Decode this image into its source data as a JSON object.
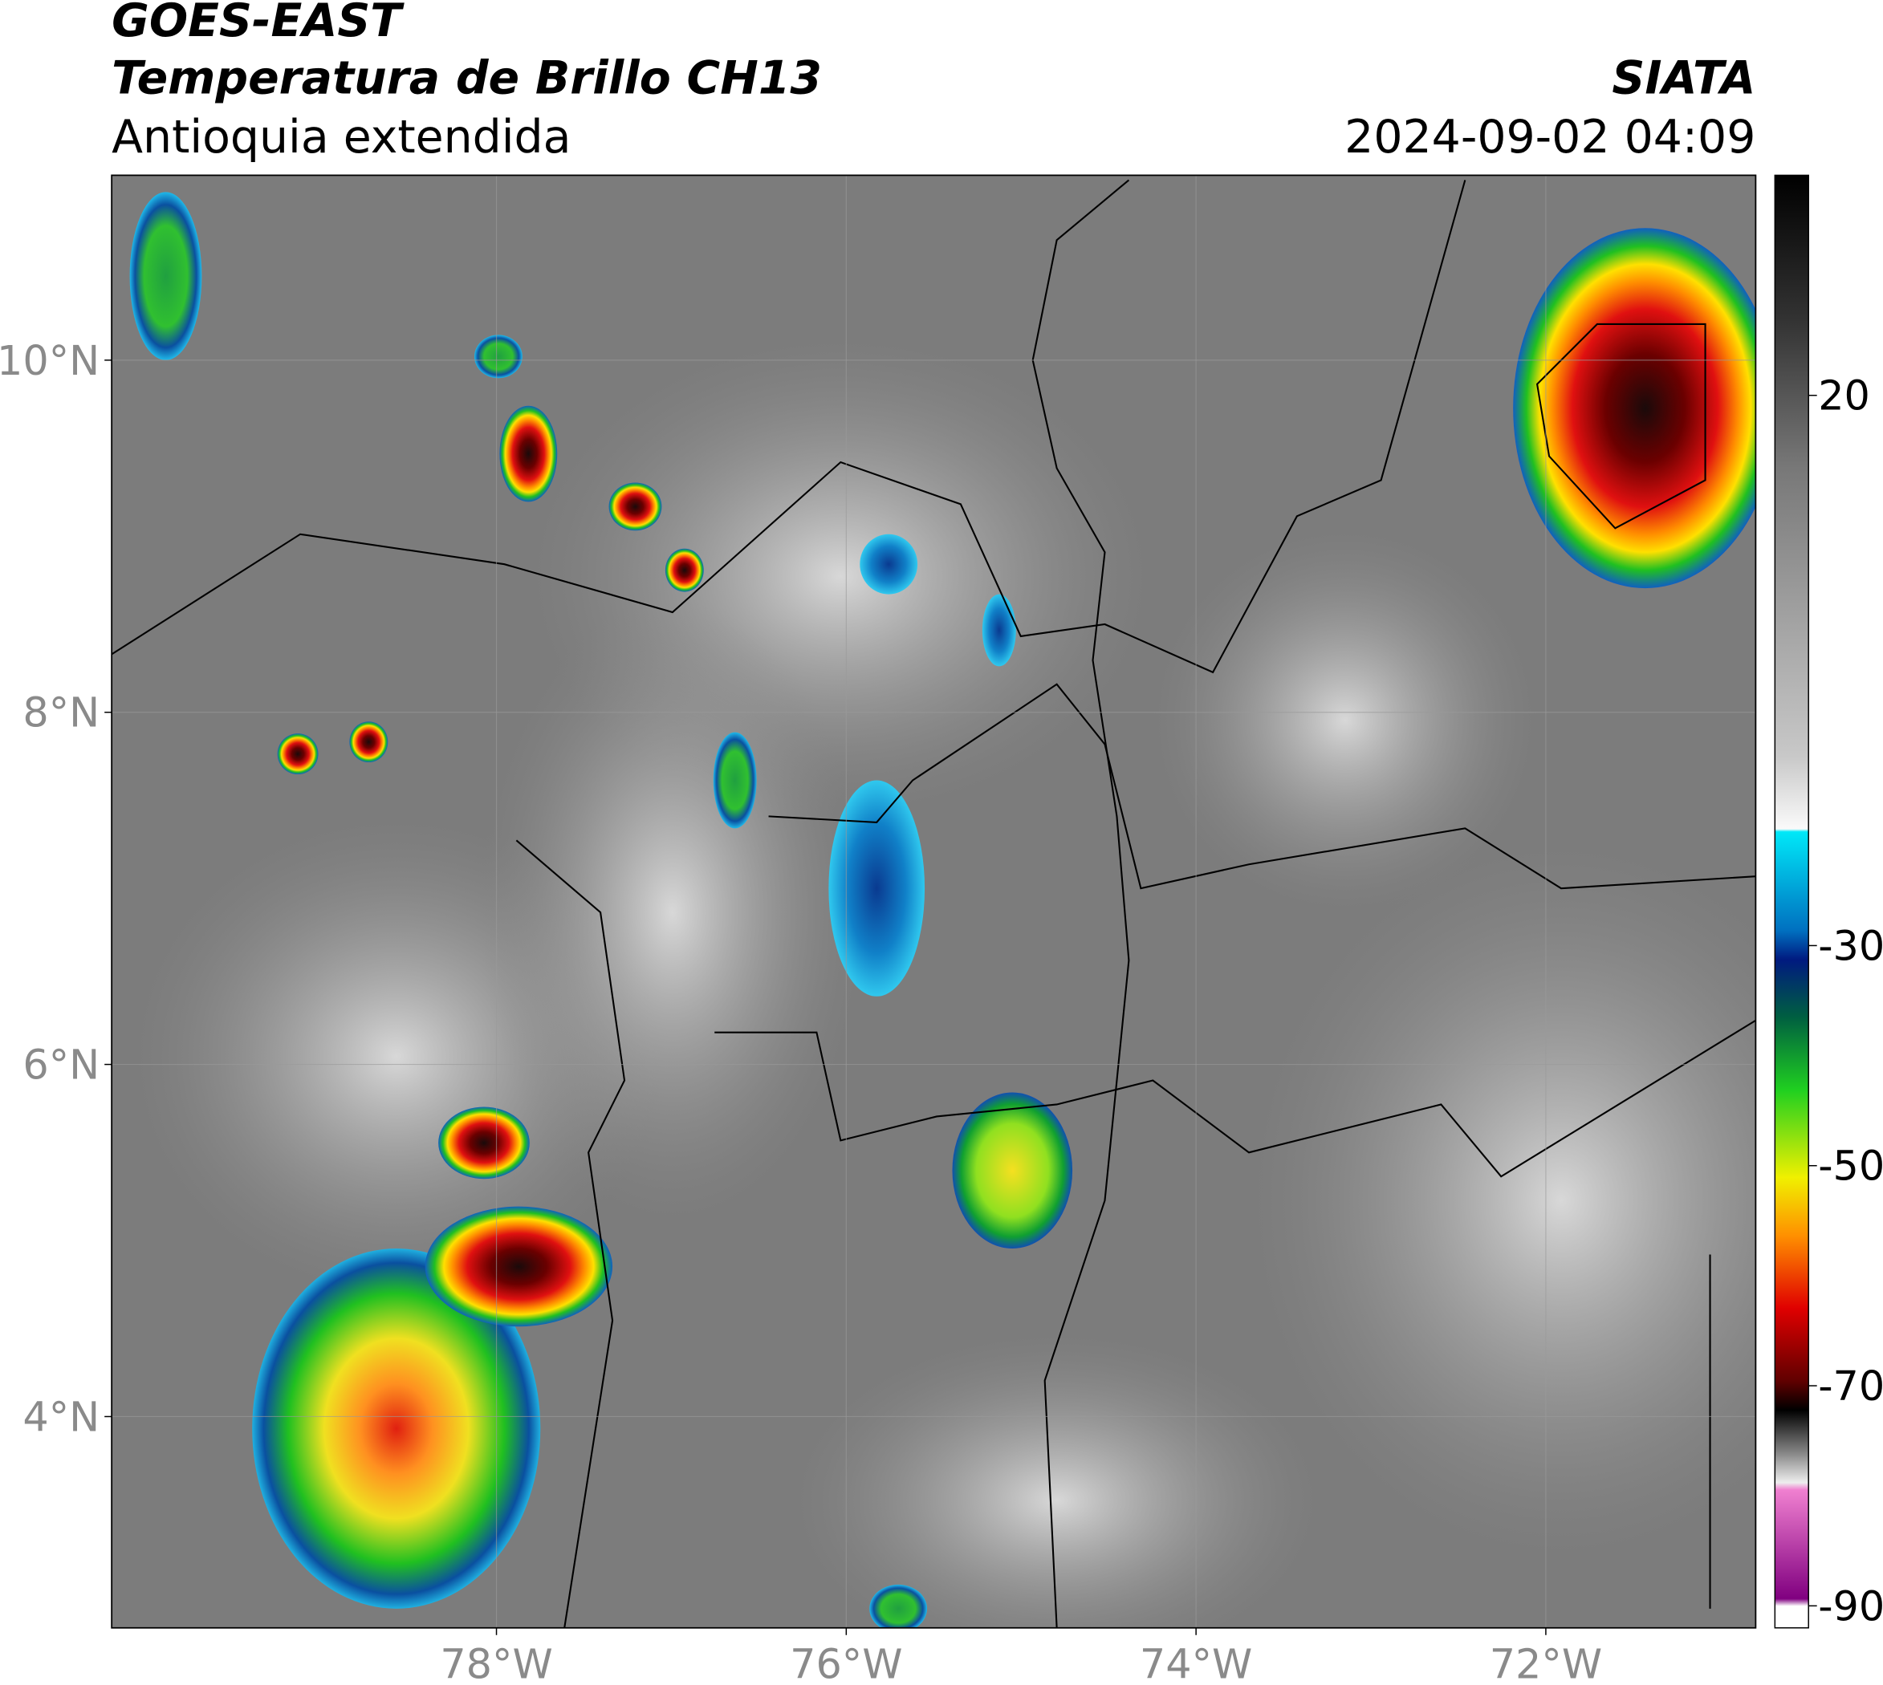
{
  "header": {
    "satellite": "GOES-EAST",
    "product": "Temperatura de Brillo CH13",
    "region": "Antioquia extendida",
    "source": "SIATA",
    "datetime": "2024-09-02 04:09"
  },
  "map": {
    "xlim": [
      -80.2,
      -70.8
    ],
    "ylim": [
      2.8,
      11.05
    ],
    "xticks": [
      {
        "value": -78,
        "label": "78°W"
      },
      {
        "value": -76,
        "label": "76°W"
      },
      {
        "value": -74,
        "label": "74°W"
      },
      {
        "value": -72,
        "label": "72°W"
      }
    ],
    "yticks": [
      {
        "value": 4,
        "label": "4°N"
      },
      {
        "value": 6,
        "label": "6°N"
      },
      {
        "value": 8,
        "label": "8°N"
      },
      {
        "value": 10,
        "label": "10°N"
      }
    ],
    "grid": true
  },
  "colorbar": {
    "lim": [
      -92,
      40
    ],
    "ticks": [
      20,
      -30,
      -50,
      -70,
      -90
    ]
  }
}
